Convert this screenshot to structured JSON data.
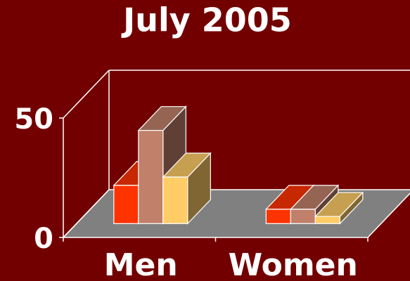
{
  "chart_data": {
    "type": "bar3d",
    "title": "July 2005",
    "categories": [
      "Men",
      "Women"
    ],
    "series": [
      {
        "color": "#ff3300",
        "values": [
          16,
          6
        ]
      },
      {
        "color": "#c0806a",
        "values": [
          39,
          6
        ]
      },
      {
        "color": "#ffcc66",
        "values": [
          19.5,
          3
        ]
      }
    ],
    "ylim": [
      0,
      50
    ],
    "yticks": [
      0,
      50
    ]
  }
}
